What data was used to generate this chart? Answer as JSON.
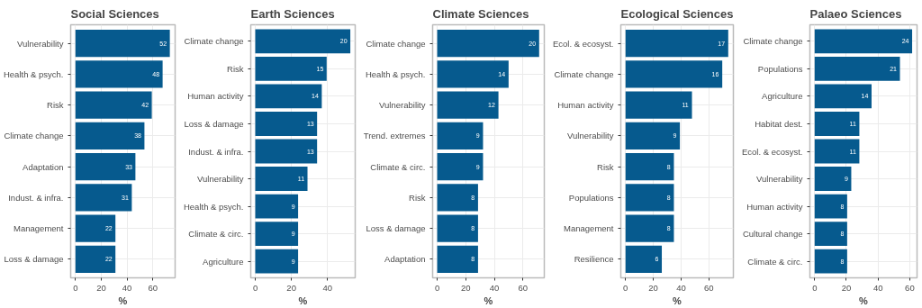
{
  "chart_data": [
    {
      "type": "bar",
      "orientation": "horizontal",
      "title": "Social Sciences",
      "xlabel": "%",
      "color": "#065a8e",
      "grid": true,
      "categories": [
        "Vulnerability",
        "Health & psych.",
        "Risk",
        "Climate change",
        "Adaptation",
        "Indust. & infra.",
        "Management",
        "Loss & damage"
      ],
      "values": [
        73.2,
        67.6,
        59.2,
        53.5,
        46.5,
        43.7,
        31,
        31
      ],
      "annotations": [
        {
          "text": "52",
          "x": 73.2,
          "y": "Vulnerability"
        },
        {
          "text": "48",
          "x": 67.6,
          "y": "Health & psych."
        },
        {
          "text": "42",
          "x": 59.2,
          "y": "Risk"
        },
        {
          "text": "38",
          "x": 53.5,
          "y": "Climate change"
        },
        {
          "text": "33",
          "x": 46.5,
          "y": "Adaptation"
        },
        {
          "text": "31",
          "x": 43.7,
          "y": "Indust. & infra."
        },
        {
          "text": "22",
          "x": 31,
          "y": "Management"
        },
        {
          "text": "22",
          "x": 31,
          "y": "Loss & damage"
        }
      ],
      "xlim": [
        -3.7,
        77.3
      ],
      "xticks": [
        0,
        20,
        40,
        60
      ]
    },
    {
      "type": "bar",
      "orientation": "horizontal",
      "title": "Earth Sciences",
      "xlabel": "%",
      "color": "#065a8e",
      "grid": true,
      "categories": [
        "Climate change",
        "Risk",
        "Human activity",
        "Loss & damage",
        "Indust. & infra.",
        "Vulnerability",
        "Health & psych.",
        "Climate & circ.",
        "Agriculture"
      ],
      "values": [
        52.6,
        39.5,
        36.8,
        34.2,
        34.2,
        28.9,
        23.7,
        23.7,
        23.7
      ],
      "annotations": [
        {
          "text": "20",
          "x": 52.6,
          "y": "Climate change"
        },
        {
          "text": "15",
          "x": 39.5,
          "y": "Risk"
        },
        {
          "text": "14",
          "x": 36.8,
          "y": "Human activity"
        },
        {
          "text": "13",
          "x": 34.2,
          "y": "Loss & damage"
        },
        {
          "text": "13",
          "x": 34.2,
          "y": "Indust. & infra."
        },
        {
          "text": "11",
          "x": 28.9,
          "y": "Vulnerability"
        },
        {
          "text": "9",
          "x": 23.7,
          "y": "Health & psych."
        },
        {
          "text": "9",
          "x": 23.7,
          "y": "Climate & circ."
        },
        {
          "text": "9",
          "x": 23.7,
          "y": "Agriculture"
        }
      ],
      "xlim": [
        -2.5,
        55.3
      ],
      "xticks": [
        0,
        20,
        40
      ]
    },
    {
      "type": "bar",
      "orientation": "horizontal",
      "title": "Climate Sciences",
      "xlabel": "%",
      "color": "#065a8e",
      "grid": true,
      "categories": [
        "Climate change",
        "Health & psych.",
        "Vulnerability",
        "Trend. extremes",
        "Climate & circ.",
        "Risk",
        "Loss & damage",
        "Adaptation"
      ],
      "values": [
        71.4,
        50,
        42.9,
        32.1,
        32.1,
        28.6,
        28.6,
        28.6
      ],
      "annotations": [
        {
          "text": "20",
          "x": 71.4,
          "y": "Climate change"
        },
        {
          "text": "14",
          "x": 50,
          "y": "Health & psych."
        },
        {
          "text": "12",
          "x": 42.9,
          "y": "Vulnerability"
        },
        {
          "text": "9",
          "x": 32.1,
          "y": "Trend. extremes"
        },
        {
          "text": "9",
          "x": 32.1,
          "y": "Climate & circ."
        },
        {
          "text": "8",
          "x": 28.6,
          "y": "Risk"
        },
        {
          "text": "8",
          "x": 28.6,
          "y": "Loss & damage"
        },
        {
          "text": "8",
          "x": 28.6,
          "y": "Adaptation"
        }
      ],
      "xlim": [
        -3.2,
        75
      ],
      "xticks": [
        0,
        20,
        40,
        60
      ]
    },
    {
      "type": "bar",
      "orientation": "horizontal",
      "title": "Ecological Sciences",
      "xlabel": "%",
      "color": "#065a8e",
      "grid": true,
      "categories": [
        "Ecol. & ecosyst.",
        "Climate change",
        "Human activity",
        "Vulnerability",
        "Risk",
        "Populations",
        "Management",
        "Resilience"
      ],
      "values": [
        73.9,
        69.6,
        47.8,
        39.1,
        34.8,
        34.8,
        34.8,
        26.1
      ],
      "annotations": [
        {
          "text": "17",
          "x": 73.9,
          "y": "Ecol. & ecosyst."
        },
        {
          "text": "16",
          "x": 69.6,
          "y": "Climate change"
        },
        {
          "text": "11",
          "x": 47.8,
          "y": "Human activity"
        },
        {
          "text": "9",
          "x": 39.1,
          "y": "Vulnerability"
        },
        {
          "text": "8",
          "x": 34.8,
          "y": "Risk"
        },
        {
          "text": "8",
          "x": 34.8,
          "y": "Populations"
        },
        {
          "text": "8",
          "x": 34.8,
          "y": "Management"
        },
        {
          "text": "6",
          "x": 26.1,
          "y": "Resilience"
        }
      ],
      "xlim": [
        -3.4,
        77.6
      ],
      "xticks": [
        0,
        20,
        40,
        60
      ]
    },
    {
      "type": "bar",
      "orientation": "horizontal",
      "title": "Palaeo Sciences",
      "xlabel": "%",
      "color": "#065a8e",
      "grid": true,
      "categories": [
        "Climate change",
        "Populations",
        "Agriculture",
        "Habitat dest.",
        "Ecol. & ecosyst.",
        "Vulnerability",
        "Human activity",
        "Cultural change",
        "Climate & circ."
      ],
      "values": [
        61.5,
        53.8,
        35.9,
        28.2,
        28.2,
        23.1,
        20.5,
        20.5,
        20.5
      ],
      "annotations": [
        {
          "text": "24",
          "x": 61.5,
          "y": "Climate change"
        },
        {
          "text": "21",
          "x": 53.8,
          "y": "Populations"
        },
        {
          "text": "14",
          "x": 35.9,
          "y": "Agriculture"
        },
        {
          "text": "11",
          "x": 28.2,
          "y": "Habitat dest."
        },
        {
          "text": "11",
          "x": 28.2,
          "y": "Ecol. & ecosyst."
        },
        {
          "text": "9",
          "x": 23.1,
          "y": "Vulnerability"
        },
        {
          "text": "8",
          "x": 20.5,
          "y": "Human activity"
        },
        {
          "text": "8",
          "x": 20.5,
          "y": "Cultural change"
        },
        {
          "text": "8",
          "x": 20.5,
          "y": "Climate & circ."
        }
      ],
      "xlim": [
        -3,
        64.6
      ],
      "xticks": [
        0,
        20,
        40,
        60
      ]
    }
  ]
}
